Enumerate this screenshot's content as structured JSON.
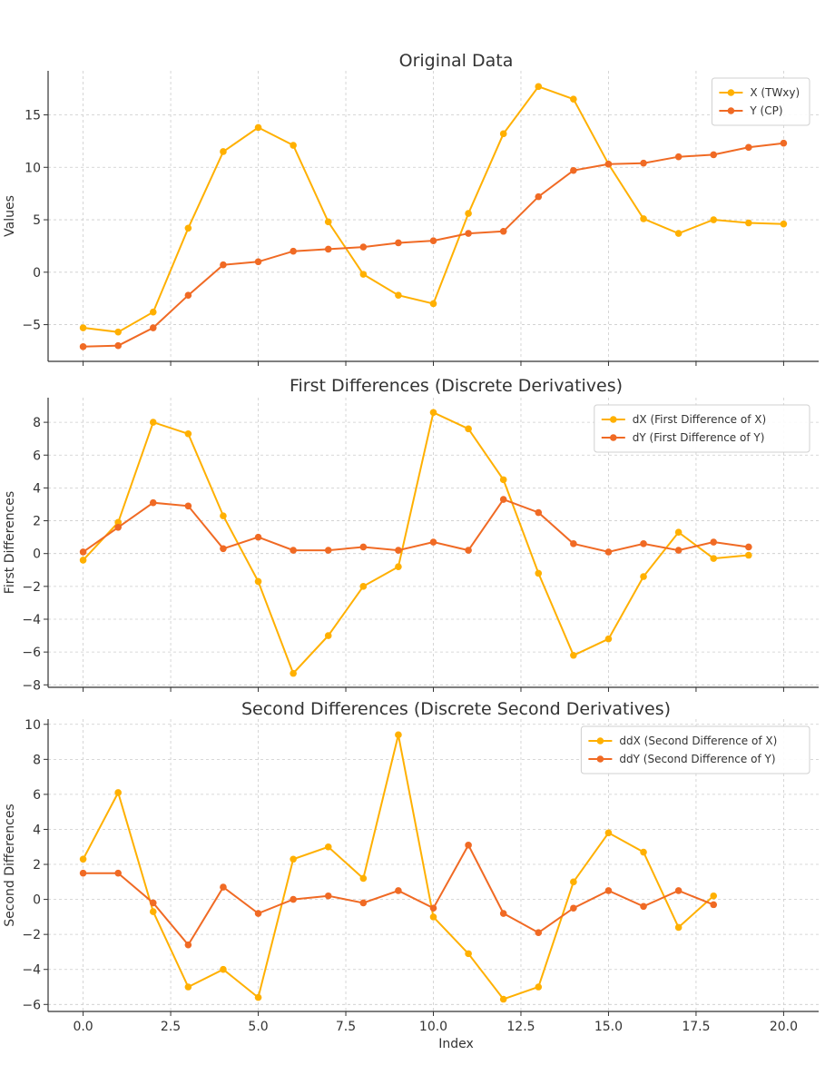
{
  "chart_data": [
    {
      "type": "line",
      "title": "Original Data",
      "xlabel": "",
      "ylabel": "Values",
      "xlim": [
        -1,
        21
      ],
      "ylim": [
        -8.5,
        19.2
      ],
      "xticks": [
        0,
        2.5,
        5,
        7.5,
        10,
        12.5,
        15,
        17.5,
        20
      ],
      "yticks": [
        -5,
        0,
        5,
        10,
        15
      ],
      "grid": true,
      "legend_position": "top-right",
      "series": [
        {
          "name": "X (TWxy)",
          "color": "#FFB000",
          "x": [
            0,
            1,
            2,
            3,
            4,
            5,
            6,
            7,
            8,
            9,
            10,
            11,
            12,
            13,
            14,
            15,
            16,
            17,
            18,
            19,
            20
          ],
          "values": [
            -5.3,
            -5.7,
            -3.8,
            4.2,
            11.5,
            13.8,
            12.1,
            4.8,
            -0.2,
            -2.2,
            -3.0,
            5.6,
            13.2,
            17.7,
            16.5,
            10.3,
            5.1,
            3.7,
            5.0,
            4.7,
            4.6
          ]
        },
        {
          "name": "Y (CP)",
          "color": "#F06A24",
          "x": [
            0,
            1,
            2,
            3,
            4,
            5,
            6,
            7,
            8,
            9,
            10,
            11,
            12,
            13,
            14,
            15,
            16,
            17,
            18,
            19,
            20
          ],
          "values": [
            -7.1,
            -7.0,
            -5.3,
            -2.2,
            0.7,
            1.0,
            2.0,
            2.2,
            2.4,
            2.8,
            3.0,
            3.7,
            3.9,
            7.2,
            9.7,
            10.3,
            10.4,
            11.0,
            11.2,
            11.9,
            12.3
          ]
        }
      ]
    },
    {
      "type": "line",
      "title": "First Differences (Discrete Derivatives)",
      "xlabel": "",
      "ylabel": "First Differences",
      "xlim": [
        -1,
        21
      ],
      "ylim": [
        -8.15,
        9.5
      ],
      "xticks": [
        0,
        2.5,
        5,
        7.5,
        10,
        12.5,
        15,
        17.5,
        20
      ],
      "yticks": [
        -8,
        -6,
        -4,
        -2,
        0,
        2,
        4,
        6,
        8
      ],
      "grid": true,
      "legend_position": "top-right",
      "series": [
        {
          "name": "dX (First Difference of X)",
          "color": "#FFB000",
          "x": [
            0,
            1,
            2,
            3,
            4,
            5,
            6,
            7,
            8,
            9,
            10,
            11,
            12,
            13,
            14,
            15,
            16,
            17,
            18,
            19
          ],
          "values": [
            -0.4,
            1.9,
            8.0,
            7.3,
            2.3,
            -1.7,
            -7.3,
            -5.0,
            -2.0,
            -0.8,
            8.6,
            7.6,
            4.5,
            -1.2,
            -6.2,
            -5.2,
            -1.4,
            1.3,
            -0.3,
            -0.1
          ]
        },
        {
          "name": "dY (First Difference of Y)",
          "color": "#F06A24",
          "x": [
            0,
            1,
            2,
            3,
            4,
            5,
            6,
            7,
            8,
            9,
            10,
            11,
            12,
            13,
            14,
            15,
            16,
            17,
            18,
            19
          ],
          "values": [
            0.1,
            1.6,
            3.1,
            2.9,
            0.3,
            1.0,
            0.2,
            0.2,
            0.4,
            0.2,
            0.7,
            0.2,
            3.3,
            2.5,
            0.6,
            0.1,
            0.6,
            0.2,
            0.7,
            0.4
          ]
        }
      ]
    },
    {
      "type": "line",
      "title": "Second Differences (Discrete Second Derivatives)",
      "xlabel": "Index",
      "ylabel": "Second Differences",
      "xlim": [
        -1,
        21
      ],
      "ylim": [
        -6.4,
        10.3
      ],
      "xticks": [
        0,
        2.5,
        5,
        7.5,
        10,
        12.5,
        15,
        17.5,
        20
      ],
      "xtick_labels": [
        "0.0",
        "2.5",
        "5.0",
        "7.5",
        "10.0",
        "12.5",
        "15.0",
        "17.5",
        "20.0"
      ],
      "yticks": [
        -6,
        -4,
        -2,
        0,
        2,
        4,
        6,
        8,
        10
      ],
      "grid": true,
      "legend_position": "top-right",
      "series": [
        {
          "name": "ddX (Second Difference of X)",
          "color": "#FFB000",
          "x": [
            0,
            1,
            2,
            3,
            4,
            5,
            6,
            7,
            8,
            9,
            10,
            11,
            12,
            13,
            14,
            15,
            16,
            17,
            18
          ],
          "values": [
            2.3,
            6.1,
            -0.7,
            -5.0,
            -4.0,
            -5.6,
            2.3,
            3.0,
            1.2,
            9.4,
            -1.0,
            -3.1,
            -5.7,
            -5.0,
            1.0,
            3.8,
            2.7,
            -1.6,
            0.2
          ]
        },
        {
          "name": "ddY (Second Difference of Y)",
          "color": "#F06A24",
          "x": [
            0,
            1,
            2,
            3,
            4,
            5,
            6,
            7,
            8,
            9,
            10,
            11,
            12,
            13,
            14,
            15,
            16,
            17,
            18
          ],
          "values": [
            1.5,
            1.5,
            -0.2,
            -2.6,
            0.7,
            -0.8,
            0.0,
            0.2,
            -0.2,
            0.5,
            -0.5,
            3.1,
            -0.8,
            -1.9,
            -0.5,
            0.5,
            -0.4,
            0.5,
            -0.3
          ]
        }
      ]
    }
  ]
}
